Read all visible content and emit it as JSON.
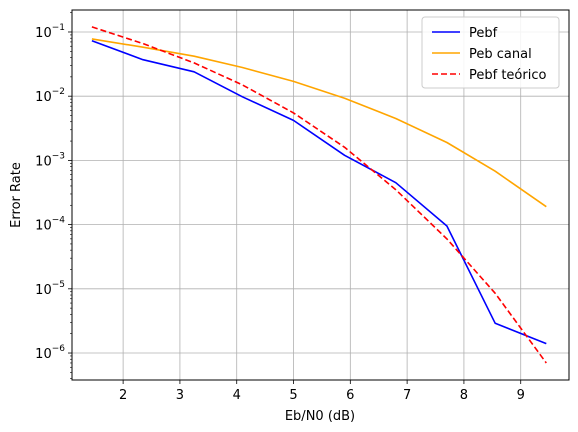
{
  "chart_data": {
    "type": "line",
    "xlabel": "Eb/N0 (dB)",
    "ylabel": "Error Rate",
    "yscale": "log",
    "xlim": [
      1.1,
      9.85
    ],
    "ylim": [
      3.8e-07,
      0.22
    ],
    "x_ticks": [
      2,
      3,
      4,
      5,
      6,
      7,
      8,
      9
    ],
    "y_ticks": [
      {
        "value": 1e-06,
        "base": "10",
        "exp": "−6"
      },
      {
        "value": 1e-05,
        "base": "10",
        "exp": "−5"
      },
      {
        "value": 0.0001,
        "base": "10",
        "exp": "−4"
      },
      {
        "value": 0.001,
        "base": "10",
        "exp": "−3"
      },
      {
        "value": 0.01,
        "base": "10",
        "exp": "−2"
      },
      {
        "value": 0.1,
        "base": "10",
        "exp": "−1"
      }
    ],
    "grid": true,
    "legend_position": "top-right",
    "series": [
      {
        "name": "Pebf",
        "color": "#0000ff",
        "dash": "solid",
        "x": [
          1.45,
          2.35,
          3.25,
          4.1,
          5.0,
          5.9,
          6.8,
          7.7,
          8.55,
          9.45
        ],
        "y": [
          0.073,
          0.037,
          0.024,
          0.0098,
          0.0042,
          0.0012,
          0.00045,
          9.5e-05,
          2.9e-06,
          1.4e-06
        ]
      },
      {
        "name": "Peb canal",
        "color": "#ffa500",
        "dash": "solid",
        "x": [
          1.45,
          2.35,
          3.25,
          4.1,
          5.0,
          5.9,
          6.8,
          7.7,
          8.55,
          9.45
        ],
        "y": [
          0.078,
          0.058,
          0.042,
          0.028,
          0.017,
          0.0093,
          0.0045,
          0.0019,
          0.00068,
          0.00019
        ]
      },
      {
        "name": "Pebf teórico",
        "color": "#ff0000",
        "dash": "dashed",
        "x": [
          1.45,
          2.35,
          3.25,
          4.1,
          5.0,
          5.9,
          6.8,
          7.7,
          8.55,
          9.45
        ],
        "y": [
          0.12,
          0.066,
          0.033,
          0.015,
          0.0055,
          0.0016,
          0.00035,
          6e-05,
          8.5e-06,
          7e-07
        ]
      }
    ]
  }
}
